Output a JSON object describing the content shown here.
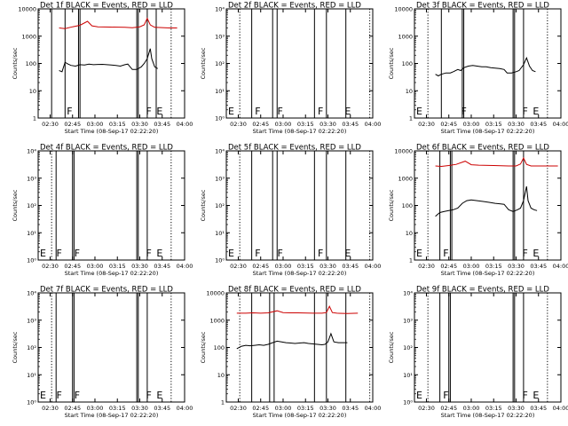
{
  "chart_data": [
    {
      "type": "line",
      "title": "Det 1f BLACK = Events, RED = LLD",
      "xlabel": "Start Time (08-Sep-17 02:22:20)",
      "ylabel": "Counts/sec",
      "yscale": "log",
      "ylim": [
        1,
        10000
      ],
      "xlim": [
        "02:22",
        "04:00"
      ],
      "x_ticks": [
        "02:30",
        "02:45",
        "03:00",
        "03:15",
        "03:30",
        "03:45",
        "04:00"
      ],
      "y_ticks": [
        "1",
        "10",
        "100",
        "1000",
        "10000"
      ],
      "flare_markers": [
        {
          "label": "F",
          "time": "02:40"
        },
        {
          "label": "F",
          "time": "03:33"
        },
        {
          "label": "E",
          "time": "03:40"
        }
      ],
      "series": [
        {
          "color": "#000000",
          "x": [
            "02:36",
            "02:37",
            "02:38",
            "02:40",
            "02:42",
            "02:44",
            "02:47",
            "02:50",
            "02:53",
            "02:56",
            "02:59",
            "03:02",
            "03:05",
            "03:08",
            "03:11",
            "03:14",
            "03:17",
            "03:20",
            "03:22",
            "03:25",
            "03:28",
            "03:31",
            "03:33",
            "03:35",
            "03:37",
            "03:38",
            "03:40",
            "03:42"
          ],
          "y": [
            55,
            52,
            50,
            110,
            95,
            85,
            80,
            90,
            88,
            95,
            90,
            92,
            93,
            90,
            88,
            85,
            80,
            90,
            95,
            60,
            60,
            75,
            100,
            150,
            350,
            150,
            75,
            65
          ]
        },
        {
          "color": "#cc0000",
          "x": [
            "02:36",
            "02:40",
            "02:45",
            "02:50",
            "02:55",
            "02:58",
            "03:02",
            "03:10",
            "03:20",
            "03:25",
            "03:30",
            "03:33",
            "03:35",
            "03:37",
            "03:40",
            "03:50",
            "03:55"
          ],
          "y": [
            2000,
            1900,
            2200,
            2500,
            3500,
            2400,
            2200,
            2150,
            2100,
            2050,
            2200,
            2600,
            4500,
            2600,
            2100,
            2000,
            2000
          ]
        }
      ]
    },
    {
      "type": "line",
      "title": "Det 2f BLACK = Events, RED = LLD",
      "xlabel": "Start Time (08-Sep-17 02:22:20)",
      "ylabel": "Counts/sec",
      "yscale": "log",
      "ylim": [
        1,
        10000
      ],
      "xlim": [
        "02:22",
        "04:00"
      ],
      "x_ticks": [
        "02:30",
        "02:45",
        "03:00",
        "03:15",
        "03:30",
        "03:45",
        "04:00"
      ],
      "y_ticks": [
        "10⁰",
        "10¹",
        "10²",
        "10³",
        "10⁴"
      ],
      "flare_markers": [
        {
          "label": "E",
          "time": "02:22"
        },
        {
          "label": "F",
          "time": "02:40"
        },
        {
          "label": "F",
          "time": "02:55"
        },
        {
          "label": "F",
          "time": "03:22"
        },
        {
          "label": "E",
          "time": "03:40"
        }
      ],
      "series": []
    },
    {
      "type": "line",
      "title": "Det 3f BLACK = Events, RED = LLD",
      "xlabel": "Start Time (08-Sep-17 02:22:20)",
      "ylabel": "Counts/sec",
      "yscale": "log",
      "ylim": [
        1,
        10000
      ],
      "xlim": [
        "02:22",
        "04:00"
      ],
      "x_ticks": [
        "02:30",
        "02:45",
        "03:00",
        "03:15",
        "03:30",
        "03:45",
        "04:00"
      ],
      "y_ticks": [
        "1",
        "10",
        "100",
        "1000",
        "10000"
      ],
      "flare_markers": [
        {
          "label": "E",
          "time": "02:22"
        },
        {
          "label": "F",
          "time": "02:52"
        },
        {
          "label": "F",
          "time": "03:33"
        },
        {
          "label": "E",
          "time": "03:40"
        }
      ],
      "series": [
        {
          "color": "#000000",
          "x": [
            "02:36",
            "02:38",
            "02:40",
            "02:43",
            "02:46",
            "02:48",
            "02:51",
            "02:53",
            "02:55",
            "02:58",
            "03:01",
            "03:04",
            "03:07",
            "03:10",
            "03:13",
            "03:16",
            "03:19",
            "03:22",
            "03:24",
            "03:27",
            "03:30",
            "03:32",
            "03:35",
            "03:37",
            "03:39",
            "03:41",
            "03:43"
          ],
          "y": [
            40,
            35,
            40,
            45,
            45,
            50,
            60,
            55,
            70,
            80,
            85,
            80,
            75,
            75,
            70,
            68,
            65,
            60,
            45,
            45,
            50,
            55,
            90,
            160,
            80,
            55,
            50
          ]
        }
      ]
    },
    {
      "type": "line",
      "title": "Det 4f BLACK = Events, RED = LLD",
      "xlabel": "Start Time (08-Sep-17 02:22:20)",
      "ylabel": "Counts/sec",
      "yscale": "log",
      "ylim": [
        1,
        10000
      ],
      "xlim": [
        "02:22",
        "04:00"
      ],
      "x_ticks": [
        "02:30",
        "02:45",
        "03:00",
        "03:15",
        "03:30",
        "03:45",
        "04:00"
      ],
      "y_ticks": [
        "10⁰",
        "10¹",
        "10²",
        "10³",
        "10⁴"
      ],
      "flare_markers": [
        {
          "label": "E",
          "time": "02:22"
        },
        {
          "label": "F",
          "time": "02:33"
        },
        {
          "label": "F",
          "time": "02:45"
        },
        {
          "label": "F",
          "time": "03:33"
        },
        {
          "label": "E",
          "time": "03:40"
        }
      ],
      "series": []
    },
    {
      "type": "line",
      "title": "Det 5f BLACK = Events, RED = LLD",
      "xlabel": "Start Time (08-Sep-17 02:22:20)",
      "ylabel": "Counts/sec",
      "yscale": "log",
      "ylim": [
        1,
        10000
      ],
      "xlim": [
        "02:22",
        "04:00"
      ],
      "x_ticks": [
        "02:30",
        "02:45",
        "03:00",
        "03:15",
        "03:30",
        "03:45",
        "04:00"
      ],
      "y_ticks": [
        "10⁰",
        "10¹",
        "10²",
        "10³",
        "10⁴"
      ],
      "flare_markers": [
        {
          "label": "E",
          "time": "02:22"
        },
        {
          "label": "F",
          "time": "02:40"
        },
        {
          "label": "F",
          "time": "02:55"
        },
        {
          "label": "F",
          "time": "03:22"
        },
        {
          "label": "E",
          "time": "03:40"
        }
      ],
      "series": []
    },
    {
      "type": "line",
      "title": "Det 6f BLACK = Events, RED = LLD",
      "xlabel": "Start Time (08-Sep-17 02:22:20)",
      "ylabel": "Counts/sec",
      "yscale": "log",
      "ylim": [
        1,
        10000
      ],
      "xlim": [
        "02:22",
        "04:00"
      ],
      "x_ticks": [
        "02:30",
        "02:45",
        "03:00",
        "03:15",
        "03:30",
        "03:45",
        "04:00"
      ],
      "y_ticks": [
        "1",
        "10",
        "100",
        "1000",
        "10000"
      ],
      "flare_markers": [
        {
          "label": "E",
          "time": "02:22"
        },
        {
          "label": "F",
          "time": "02:40"
        },
        {
          "label": "F",
          "time": "03:33"
        },
        {
          "label": "E",
          "time": "03:40"
        }
      ],
      "series": [
        {
          "color": "#000000",
          "x": [
            "02:36",
            "02:37",
            "02:39",
            "02:42",
            "02:45",
            "02:48",
            "02:51",
            "02:54",
            "02:57",
            "03:00",
            "03:04",
            "03:08",
            "03:12",
            "03:16",
            "03:19",
            "03:22",
            "03:25",
            "03:28",
            "03:31",
            "03:33",
            "03:35",
            "03:37",
            "03:38",
            "03:40",
            "03:42",
            "03:44"
          ],
          "y": [
            40,
            45,
            55,
            60,
            65,
            70,
            80,
            120,
            150,
            160,
            150,
            140,
            130,
            120,
            115,
            110,
            70,
            60,
            70,
            80,
            150,
            500,
            150,
            80,
            70,
            65
          ]
        },
        {
          "color": "#cc0000",
          "x": [
            "02:36",
            "02:40",
            "02:45",
            "02:50",
            "02:56",
            "03:00",
            "03:05",
            "03:15",
            "03:25",
            "03:30",
            "03:33",
            "03:35",
            "03:37",
            "03:40",
            "03:50",
            "03:58"
          ],
          "y": [
            2800,
            2700,
            2900,
            3200,
            4200,
            3100,
            3000,
            2900,
            2800,
            2800,
            3300,
            5500,
            3200,
            2800,
            2800,
            2800
          ]
        }
      ]
    },
    {
      "type": "line",
      "title": "Det 7f BLACK = Events, RED = LLD",
      "xlabel": "Start Time (08-Sep-17 02:22:20)",
      "ylabel": "Counts/sec",
      "yscale": "log",
      "ylim": [
        1,
        10000
      ],
      "xlim": [
        "02:22",
        "04:00"
      ],
      "x_ticks": [
        "02:30",
        "02:45",
        "03:00",
        "03:15",
        "03:30",
        "03:45",
        "04:00"
      ],
      "y_ticks": [
        "10⁰",
        "10¹",
        "10²",
        "10³",
        "10⁴"
      ],
      "flare_markers": [
        {
          "label": "E",
          "time": "02:22"
        },
        {
          "label": "F",
          "time": "02:33"
        },
        {
          "label": "F",
          "time": "02:45"
        },
        {
          "label": "F",
          "time": "03:33"
        },
        {
          "label": "E",
          "time": "03:40"
        }
      ],
      "series": []
    },
    {
      "type": "line",
      "title": "Det 8f BLACK = Events, RED = LLD",
      "xlabel": "Start Time (08-Sep-17 02:22:20)",
      "ylabel": "Counts/sec",
      "yscale": "log",
      "ylim": [
        1,
        10000
      ],
      "xlim": [
        "02:22",
        "04:00"
      ],
      "x_ticks": [
        "02:30",
        "02:45",
        "03:00",
        "03:15",
        "03:30",
        "03:45",
        "04:00"
      ],
      "y_ticks": [
        "1",
        "10",
        "100",
        "1000",
        "10000"
      ],
      "flare_markers": [],
      "series": [
        {
          "color": "#000000",
          "x": [
            "02:29",
            "02:32",
            "02:35",
            "02:38",
            "02:41",
            "02:44",
            "02:47",
            "02:50",
            "02:53",
            "02:56",
            "02:59",
            "03:02",
            "03:05",
            "03:08",
            "03:11",
            "03:14",
            "03:17",
            "03:20",
            "03:23",
            "03:26",
            "03:28",
            "03:30",
            "03:32",
            "03:34",
            "03:37",
            "03:40",
            "03:43"
          ],
          "y": [
            90,
            110,
            120,
            115,
            120,
            125,
            120,
            130,
            150,
            170,
            160,
            150,
            145,
            140,
            145,
            150,
            140,
            135,
            130,
            125,
            130,
            160,
            320,
            160,
            150,
            150,
            150
          ]
        },
        {
          "color": "#cc0000",
          "x": [
            "02:29",
            "02:35",
            "02:40",
            "02:45",
            "02:50",
            "02:56",
            "03:00",
            "03:05",
            "03:10",
            "03:20",
            "03:26",
            "03:29",
            "03:31",
            "03:33",
            "03:36",
            "03:43",
            "03:50"
          ],
          "y": [
            1800,
            1800,
            1850,
            1800,
            1850,
            2200,
            1900,
            1850,
            1850,
            1800,
            1800,
            1900,
            3200,
            1900,
            1800,
            1750,
            1800
          ]
        }
      ]
    },
    {
      "type": "line",
      "title": "Det 9f BLACK = Events, RED = LLD",
      "xlabel": "Start Time (08-Sep-17 02:22:20)",
      "ylabel": "Counts/sec",
      "yscale": "log",
      "ylim": [
        1,
        10000
      ],
      "xlim": [
        "02:22",
        "04:00"
      ],
      "x_ticks": [
        "02:30",
        "02:45",
        "03:00",
        "03:15",
        "03:30",
        "03:45",
        "04:00"
      ],
      "y_ticks": [
        "10⁰",
        "10¹",
        "10²",
        "10³",
        "10⁴"
      ],
      "flare_markers": [
        {
          "label": "E",
          "time": "02:22"
        },
        {
          "label": "F",
          "time": "02:40"
        },
        {
          "label": "F",
          "time": "03:33"
        },
        {
          "label": "E",
          "time": "03:40"
        }
      ],
      "series": []
    }
  ]
}
